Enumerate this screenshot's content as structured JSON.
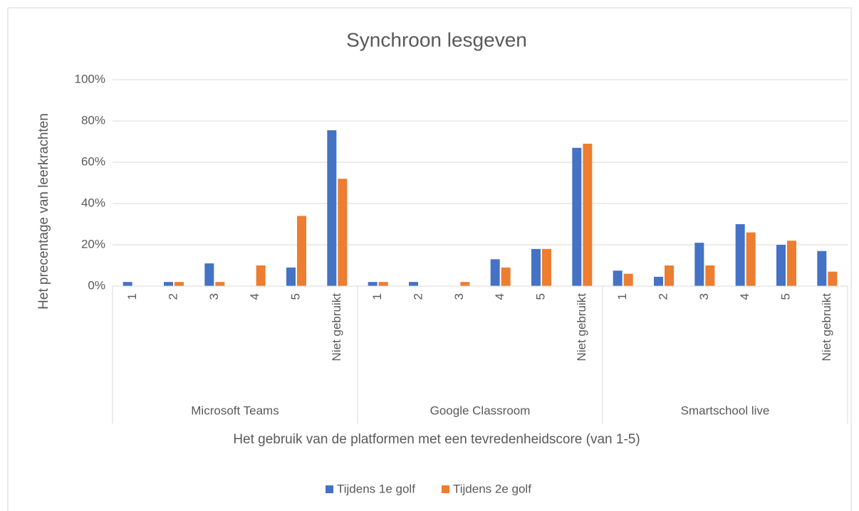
{
  "chart_data": {
    "type": "bar",
    "title": "Synchroon lesgeven",
    "x_label": "Het gebruik van de platformen met een tevredenheidscore (van 1-5)",
    "y_label": "Het precentage van leerkrachten",
    "groups": [
      {
        "name": "Microsoft Teams",
        "categories": [
          "1",
          "2",
          "3",
          "4",
          "5",
          "Niet gebruikt"
        ]
      },
      {
        "name": "Google Classroom",
        "categories": [
          "1",
          "2",
          "3",
          "4",
          "5",
          "Niet gebruikt"
        ]
      },
      {
        "name": "Smartschool live",
        "categories": [
          "1",
          "2",
          "3",
          "4",
          "5",
          "Niet gebruikt"
        ]
      }
    ],
    "series": [
      {
        "name": "Tijdens 1e golf",
        "color": "#4472c4",
        "values": [
          [
            2,
            2,
            11,
            0,
            9,
            75.5
          ],
          [
            2,
            2,
            0,
            13,
            18,
            67
          ],
          [
            7.5,
            4.5,
            21,
            30,
            20,
            17
          ]
        ]
      },
      {
        "name": "Tijdens 2e golf",
        "color": "#ed7d31",
        "values": [
          [
            0,
            2,
            2,
            10,
            34,
            52
          ],
          [
            2,
            0,
            2,
            9,
            18,
            69
          ],
          [
            6,
            10,
            10,
            26,
            22,
            7
          ]
        ]
      }
    ],
    "ylim": [
      0,
      100
    ],
    "yticks": [
      {
        "value": 0,
        "label": "0%"
      },
      {
        "value": 20,
        "label": "20%"
      },
      {
        "value": 40,
        "label": "40%"
      },
      {
        "value": 60,
        "label": "60%"
      },
      {
        "value": 80,
        "label": "80%"
      },
      {
        "value": 100,
        "label": "100%"
      }
    ],
    "grid": true,
    "legend": "bottom"
  }
}
